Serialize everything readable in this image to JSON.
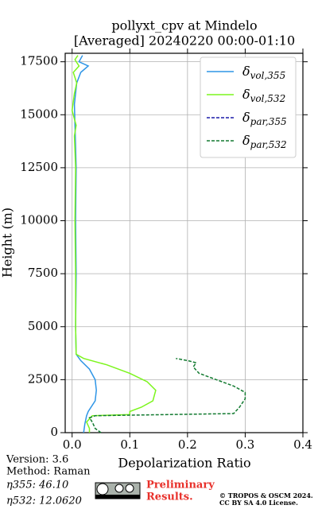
{
  "chart_data": {
    "type": "line",
    "title": "pollyxt_cpv at Mindelo",
    "subtitle": "[Averaged] 20240220 00:00-01:10",
    "x_label": "Depolarization Ratio",
    "y_label": "Height (m)",
    "xlim": [
      -0.012,
      0.4
    ],
    "xticks": [
      {
        "value": 0,
        "label": "0.0"
      },
      0.1,
      0.2,
      0.3,
      0.4
    ],
    "ylim": [
      0,
      17900
    ],
    "yticks": [
      0,
      2500,
      5000,
      7500,
      10000,
      12500,
      15000,
      17500
    ],
    "grid": true,
    "legend": "upper right",
    "series": [
      {
        "name": "δ",
        "subscript": "vol,355",
        "color": "#2e95e6",
        "dash": false,
        "values": [
          0.02,
          0.022,
          0.025,
          0.028,
          0.04,
          0.042,
          0.04,
          0.03,
          0.015,
          0.007,
          0.006,
          0.007,
          0.006,
          0.007,
          0.005,
          0.004,
          0.008,
          0.015,
          0.028,
          0.012,
          0.018
        ],
        "heights": [
          0,
          400,
          800,
          1000,
          1500,
          2000,
          2500,
          3000,
          3400,
          3700,
          5000,
          7500,
          10000,
          12500,
          14500,
          15500,
          16500,
          17000,
          17300,
          17500,
          17800
        ]
      },
      {
        "name": "δ",
        "subscript": "vol,532",
        "color": "#7cf51d",
        "dash": false,
        "values": [
          0.03,
          0.03,
          0.025,
          0.035,
          0.1,
          0.1,
          0.12,
          0.14,
          0.145,
          0.13,
          0.1,
          0.06,
          0.02,
          0.007,
          0.006,
          0.006,
          0.005,
          0.006,
          0.004,
          0.007,
          0.0,
          0.004,
          0.008,
          0.002,
          0.012,
          0.005,
          0.01
        ],
        "heights": [
          0,
          200,
          500,
          800,
          850,
          1000,
          1200,
          1500,
          2000,
          2400,
          2800,
          3200,
          3500,
          3700,
          5000,
          7500,
          10000,
          12500,
          14000,
          14500,
          15200,
          16000,
          16500,
          17000,
          17300,
          17600,
          17800
        ]
      },
      {
        "name": "δ",
        "subscript": "par,355",
        "color": "#1a1aa8",
        "dash": true,
        "values": [],
        "heights": []
      },
      {
        "name": "δ",
        "subscript": "par,532",
        "color": "#127a30",
        "dash": true,
        "values": [
          0.05,
          0.04,
          0.035,
          0.03,
          0.04,
          0.28,
          0.29,
          0.3,
          0.3,
          0.28,
          0.25,
          0.22,
          0.21,
          0.215,
          0.2,
          0.18
        ],
        "heights": [
          0,
          200,
          500,
          700,
          800,
          900,
          1200,
          1600,
          1900,
          2200,
          2500,
          2800,
          3100,
          3300,
          3400,
          3500
        ]
      }
    ]
  },
  "footer": {
    "version": "Version: 3.6",
    "method": "Method: Raman",
    "eta355": "η355:  46.10",
    "eta532": "η532: 12.0620",
    "preliminary": [
      "Preliminary",
      "Results."
    ],
    "license": [
      "© TROPOS & OSCM 2024.",
      "CC BY SA 4.0 License."
    ]
  }
}
